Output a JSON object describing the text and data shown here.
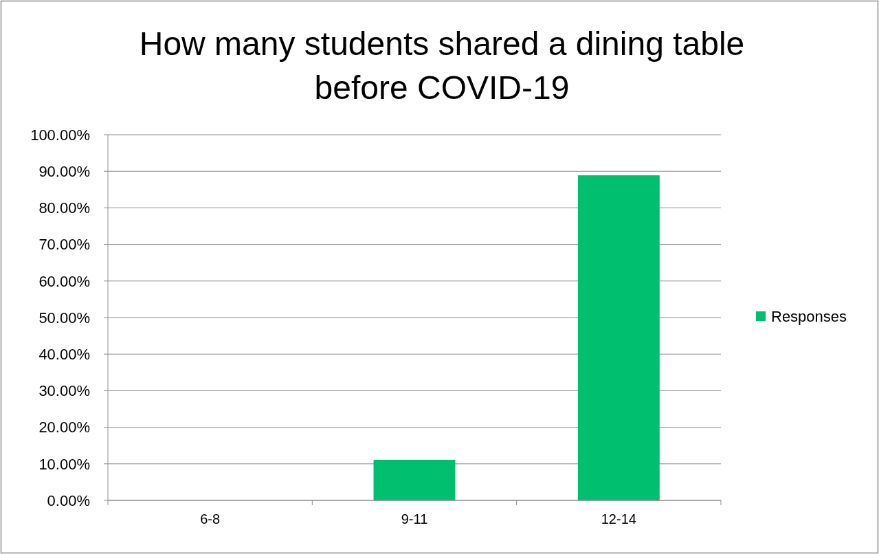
{
  "chart_data": {
    "type": "bar",
    "title": "How many students shared a dining table before COVID-19",
    "categories": [
      "6-8",
      "9-11",
      "12-14"
    ],
    "series": [
      {
        "name": "Responses",
        "color": "#00bf6f",
        "values": [
          0,
          11.1,
          88.9
        ]
      }
    ],
    "ylim": [
      0,
      100
    ],
    "yticks": [
      {
        "value": 0,
        "label": "0.00%"
      },
      {
        "value": 10,
        "label": "10.00%"
      },
      {
        "value": 20,
        "label": "20.00%"
      },
      {
        "value": 30,
        "label": "30.00%"
      },
      {
        "value": 40,
        "label": "40.00%"
      },
      {
        "value": 50,
        "label": "50.00%"
      },
      {
        "value": 60,
        "label": "60.00%"
      },
      {
        "value": 70,
        "label": "70.00%"
      },
      {
        "value": 80,
        "label": "80.00%"
      },
      {
        "value": 90,
        "label": "90.00%"
      },
      {
        "value": 100,
        "label": "100.00%"
      }
    ],
    "grid": "y",
    "legend": "right"
  }
}
